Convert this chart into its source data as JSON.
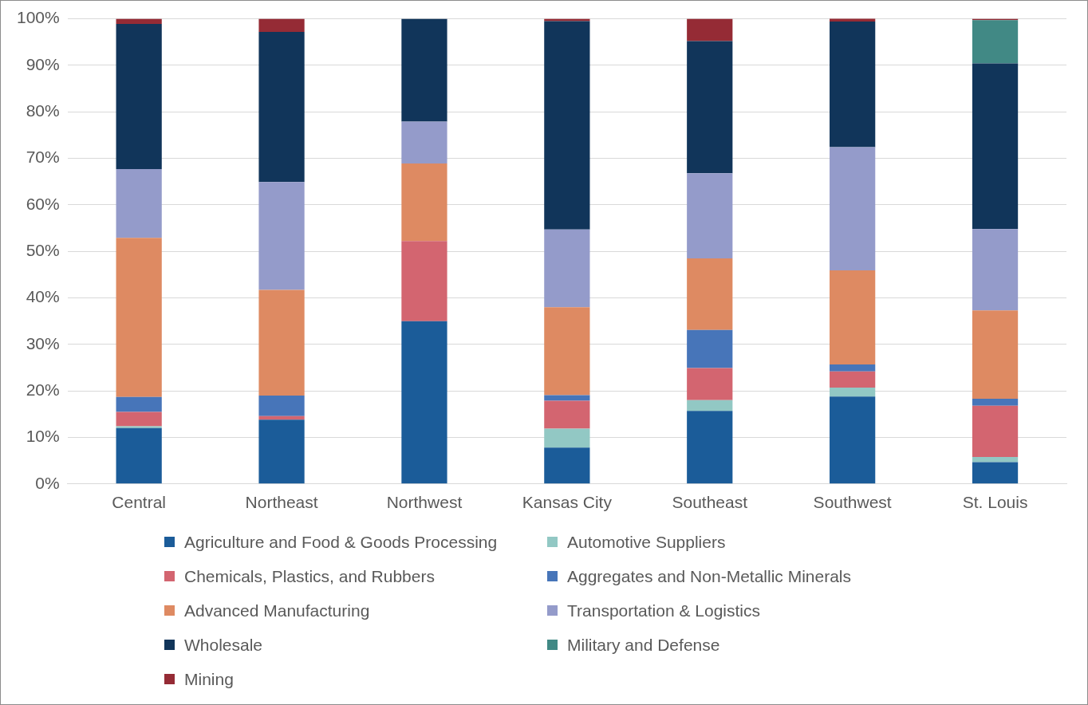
{
  "chart_data": {
    "type": "bar",
    "stacked": true,
    "grid": "y",
    "legend": "bottom",
    "categories": [
      "Central",
      "Northeast",
      "Northwest",
      "Kansas City",
      "Southeast",
      "Southwest",
      "St. Louis"
    ],
    "ylim": [
      0,
      100
    ],
    "yticks": [
      {
        "value": 0,
        "label": "0%"
      },
      {
        "value": 10,
        "label": "10%"
      },
      {
        "value": 20,
        "label": "20%"
      },
      {
        "value": 30,
        "label": "30%"
      },
      {
        "value": 40,
        "label": "40%"
      },
      {
        "value": 50,
        "label": "50%"
      },
      {
        "value": 60,
        "label": "60%"
      },
      {
        "value": 70,
        "label": "70%"
      },
      {
        "value": 80,
        "label": "80%"
      },
      {
        "value": 90,
        "label": "90%"
      },
      {
        "value": 100,
        "label": "100%"
      }
    ],
    "series": [
      {
        "name": "Agriculture and Food & Goods Processing",
        "color": "#1b5c99",
        "values": [
          12,
          13.8,
          35,
          7.8,
          15.7,
          18.8,
          4.7
        ]
      },
      {
        "name": "Automotive Suppliers",
        "color": "#92c8c4",
        "values": [
          0.4,
          0,
          0,
          4.1,
          2.3,
          1.9,
          1.1
        ]
      },
      {
        "name": "Chemicals, Plastics, and Rubbers",
        "color": "#d36570",
        "values": [
          3.1,
          0.8,
          17.2,
          6,
          6.9,
          3.5,
          11
        ]
      },
      {
        "name": "Aggregates and Non-Metallic Minerals",
        "color": "#4775b9",
        "values": [
          3.2,
          4.4,
          0,
          1.2,
          8.2,
          1.5,
          1.5
        ]
      },
      {
        "name": "Advanced Manufacturing",
        "color": "#de8a62",
        "values": [
          34.2,
          22.7,
          16.7,
          18.9,
          15.4,
          20.2,
          19
        ]
      },
      {
        "name": "Transportation & Logistics",
        "color": "#949bca",
        "values": [
          14.8,
          23.2,
          9,
          16.7,
          18.3,
          26.5,
          17.5
        ]
      },
      {
        "name": "Wholesale",
        "color": "#11355a",
        "values": [
          31.2,
          32.3,
          22.1,
          44.8,
          28.4,
          27,
          35.6
        ]
      },
      {
        "name": "Military and Defense",
        "color": "#418985",
        "values": [
          0,
          0,
          0,
          0,
          0,
          0,
          9.3
        ]
      },
      {
        "name": "Mining",
        "color": "#952b35",
        "values": [
          1.1,
          2.8,
          0,
          0.5,
          4.8,
          0.7,
          0.3
        ]
      }
    ]
  }
}
